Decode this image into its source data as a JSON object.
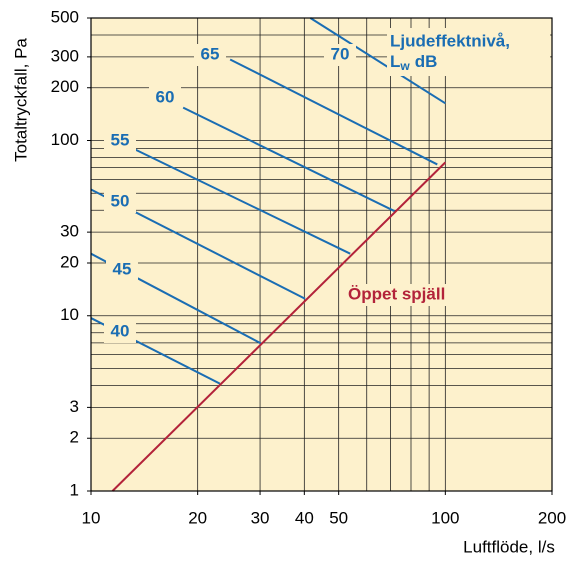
{
  "chart_data": {
    "type": "line",
    "x_label": "Luftflöde, l/s",
    "y_label": "Totaltryckfall, Pa",
    "log_x": true,
    "log_y": true,
    "grid": true,
    "xlim": [
      10,
      200
    ],
    "ylim": [
      1,
      500
    ],
    "xticks": [
      10,
      20,
      30,
      40,
      50,
      100,
      200
    ],
    "yticks": [
      1,
      2,
      3,
      10,
      20,
      30,
      100,
      200,
      300,
      500
    ],
    "xgrid": [
      10,
      20,
      30,
      40,
      50,
      60,
      70,
      80,
      90,
      100,
      200
    ],
    "ygrid": [
      1,
      2,
      3,
      4,
      5,
      6,
      7,
      8,
      9,
      10,
      20,
      30,
      40,
      50,
      60,
      70,
      80,
      90,
      100,
      200,
      300,
      400,
      500
    ],
    "legend_title": [
      "Ljudeffektnivå,",
      "L",
      "w",
      "dB"
    ],
    "legend_color": "#1a6db3",
    "series": [
      {
        "name": "40",
        "color": "#1a6db3",
        "x": [
          10,
          23.1
        ],
        "y": [
          9.7,
          4.1
        ]
      },
      {
        "name": "45",
        "color": "#1a6db3",
        "x": [
          10,
          30.4
        ],
        "y": [
          22.6,
          6.9
        ]
      },
      {
        "name": "50",
        "color": "#1a6db3",
        "x": [
          10,
          40.2
        ],
        "y": [
          52.5,
          12.5
        ]
      },
      {
        "name": "55",
        "color": "#1a6db3",
        "x": [
          13.3,
          53.9
        ],
        "y": [
          89,
          22.6
        ]
      },
      {
        "name": "60",
        "color": "#1a6db3",
        "x": [
          18.2,
          72.3
        ],
        "y": [
          154,
          39.3
        ]
      },
      {
        "name": "65",
        "color": "#1a6db3",
        "x": [
          24.7,
          94.9
        ],
        "y": [
          290,
          73
        ]
      },
      {
        "name": "70",
        "color": "#1a6db3",
        "x": [
          41.6,
          100
        ],
        "y": [
          500,
          163
        ]
      },
      {
        "name": "Öppet spjäll",
        "color": "#b3233a",
        "x": [
          11.5,
          100
        ],
        "y": [
          1,
          75
        ]
      }
    ]
  }
}
